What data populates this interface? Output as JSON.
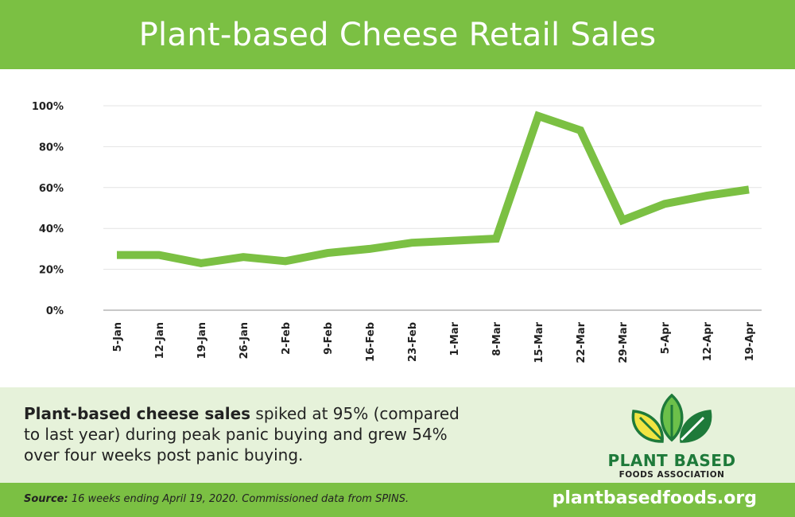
{
  "header": {
    "title": "Plant-based Cheese Retail Sales"
  },
  "chart_data": {
    "type": "line",
    "title": "Plant-based Cheese Retail Sales",
    "xlabel": "",
    "ylabel": "",
    "categories": [
      "5-Jan",
      "12-Jan",
      "19-Jan",
      "26-Jan",
      "2-Feb",
      "9-Feb",
      "16-Feb",
      "23-Feb",
      "1-Mar",
      "8-Mar",
      "15-Mar",
      "22-Mar",
      "29-Mar",
      "5-Apr",
      "12-Apr",
      "19-Apr"
    ],
    "series": [
      {
        "values": [
          27,
          27,
          23,
          26,
          24,
          28,
          30,
          33,
          34,
          35,
          95,
          88,
          44,
          52,
          56,
          59
        ]
      }
    ],
    "yticks": [
      "0%",
      "20%",
      "40%",
      "60%",
      "80%",
      "100%"
    ],
    "ylim": [
      0,
      100
    ],
    "grid": true,
    "color": "#7bc043"
  },
  "summary": {
    "bold": "Plant-based cheese sales",
    "text": " spiked at 95% (compared to last year) during peak panic buying and grew 54% over four weeks post panic buying."
  },
  "logo": {
    "title": "PLANT BASED",
    "subtitle": "FOODS ASSOCIATION",
    "icon": "three-leaves-icon",
    "colors": [
      "#f0e442",
      "#6cc04a",
      "#1e7a3a"
    ]
  },
  "footer": {
    "source_label": "Source:",
    "source_text": " 16 weeks ending April 19, 2020. Commissioned data from SPINS.",
    "website": "plantbasedfoods.org"
  }
}
